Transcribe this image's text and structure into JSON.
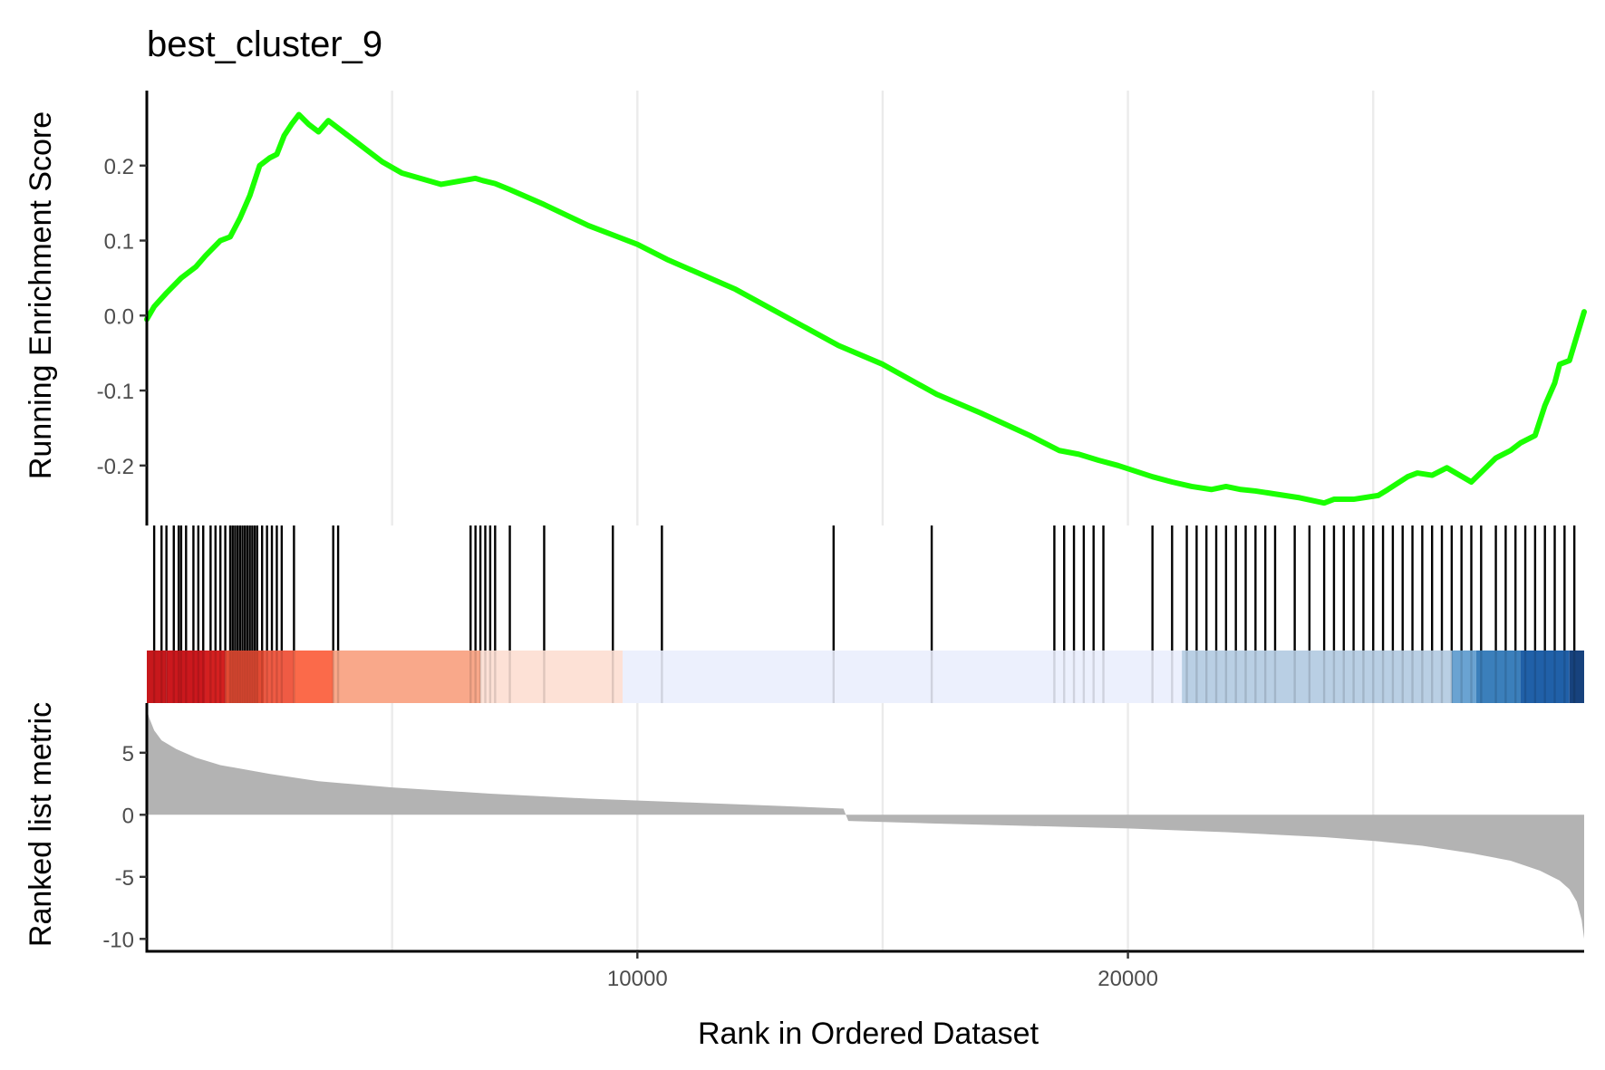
{
  "chart_data": {
    "type": "line",
    "title": "best_cluster_9",
    "xlabel": "Rank in Ordered Dataset",
    "xlim": [
      0,
      29300
    ],
    "x_ticks": [
      {
        "value": 10000,
        "label": "10000"
      },
      {
        "value": 20000,
        "label": "20000"
      }
    ],
    "x_grid": [
      5000,
      10000,
      15000,
      20000,
      25000
    ],
    "grid": true,
    "legend": "none",
    "colors": {
      "enrichment_line": "#1aff00",
      "hit_marks": "#000000",
      "metric_area": "#b3b3b3",
      "grid": "#ebebeb",
      "axis": "#000000"
    },
    "panels": [
      {
        "name": "running_enrichment",
        "ylabel": "Running Enrichment Score",
        "ylim": [
          -0.28,
          0.3
        ],
        "y_ticks": [
          {
            "value": 0.2,
            "label": "0.2"
          },
          {
            "value": 0.1,
            "label": "0.1"
          },
          {
            "value": 0.0,
            "label": "0.0"
          },
          {
            "value": -0.1,
            "label": "-0.1"
          },
          {
            "value": -0.2,
            "label": "-0.2"
          }
        ],
        "series": [
          {
            "x": [
              0,
              150,
              400,
              700,
              1000,
              1200,
              1500,
              1700,
              1900,
              2100,
              2300,
              2500,
              2650,
              2800,
              2950,
              3100,
              3300,
              3500,
              3700,
              3900,
              4100,
              4300,
              4500,
              4800,
              5200,
              6000,
              6700,
              6850,
              7100,
              7400,
              8100,
              9000,
              9600,
              10000,
              10600,
              12000,
              14100,
              15000,
              16100,
              17000,
              18000,
              18600,
              19000,
              19400,
              19800,
              20500,
              20900,
              21300,
              21700,
              22000,
              22300,
              22600,
              23000,
              23500,
              24000,
              24200,
              24600,
              25100,
              25300,
              25700,
              25900,
              26200,
              26500,
              27000,
              27500,
              27800,
              28000,
              28300,
              28500,
              28700,
              28800,
              29000,
              29300
            ],
            "y": [
              -0.005,
              0.012,
              0.03,
              0.05,
              0.065,
              0.08,
              0.1,
              0.105,
              0.13,
              0.16,
              0.2,
              0.21,
              0.215,
              0.24,
              0.255,
              0.268,
              0.255,
              0.245,
              0.26,
              0.25,
              0.24,
              0.23,
              0.22,
              0.205,
              0.19,
              0.175,
              0.183,
              0.18,
              0.176,
              0.168,
              0.148,
              0.12,
              0.105,
              0.095,
              0.075,
              0.035,
              -0.04,
              -0.065,
              -0.105,
              -0.13,
              -0.16,
              -0.18,
              -0.185,
              -0.193,
              -0.2,
              -0.215,
              -0.222,
              -0.228,
              -0.232,
              -0.228,
              -0.232,
              -0.234,
              -0.238,
              -0.243,
              -0.25,
              -0.245,
              -0.245,
              -0.24,
              -0.232,
              -0.215,
              -0.21,
              -0.213,
              -0.203,
              -0.222,
              -0.19,
              -0.18,
              -0.17,
              -0.16,
              -0.12,
              -0.09,
              -0.065,
              -0.06,
              0.005
            ]
          }
        ]
      },
      {
        "name": "gene_set_hits",
        "hits": [
          150,
          300,
          400,
          550,
          650,
          700,
          800,
          950,
          1050,
          1150,
          1300,
          1400,
          1500,
          1600,
          1700,
          1750,
          1800,
          1850,
          1900,
          1950,
          2000,
          2050,
          2100,
          2150,
          2200,
          2250,
          2350,
          2450,
          2550,
          2650,
          2750,
          3000,
          3800,
          3900,
          6600,
          6700,
          6800,
          6900,
          7000,
          7100,
          7400,
          8100,
          9500,
          10500,
          14000,
          16000,
          18500,
          18700,
          18900,
          19100,
          19300,
          19500,
          20500,
          20900,
          21200,
          21400,
          21600,
          21800,
          22000,
          22200,
          22400,
          22600,
          22800,
          23000,
          23400,
          23700,
          24000,
          24200,
          24400,
          24600,
          24800,
          25000,
          25200,
          25400,
          25600,
          25800,
          26000,
          26200,
          26400,
          26600,
          26800,
          27000,
          27200,
          27500,
          27700,
          27900,
          28100,
          28300,
          28500,
          28700,
          28900,
          29100
        ]
      },
      {
        "name": "ranked_metric_heatmap",
        "type": "heatmap",
        "segments": [
          {
            "x0": 0,
            "x1": 400,
            "color": "#c7181c"
          },
          {
            "x0": 400,
            "x1": 1200,
            "color": "#cb181d"
          },
          {
            "x0": 1200,
            "x1": 1600,
            "color": "#d42020"
          },
          {
            "x0": 1600,
            "x1": 2400,
            "color": "#e24a33"
          },
          {
            "x0": 2400,
            "x1": 3000,
            "color": "#ef5b44"
          },
          {
            "x0": 3000,
            "x1": 3800,
            "color": "#fb6a4a"
          },
          {
            "x0": 3800,
            "x1": 6800,
            "color": "#f9a88a"
          },
          {
            "x0": 6800,
            "x1": 9700,
            "color": "#fde1d6"
          },
          {
            "x0": 9700,
            "x1": 21100,
            "color": "#ecf0fd"
          },
          {
            "x0": 21100,
            "x1": 26600,
            "color": "#b9cfe4"
          },
          {
            "x0": 26600,
            "x1": 27100,
            "color": "#6aa3d2"
          },
          {
            "x0": 27100,
            "x1": 28000,
            "color": "#3b7fbb"
          },
          {
            "x0": 28000,
            "x1": 29000,
            "color": "#2060a8"
          },
          {
            "x0": 29000,
            "x1": 29300,
            "color": "#17427d"
          }
        ]
      },
      {
        "name": "ranked_list_metric",
        "type": "area",
        "ylabel": "Ranked list metric",
        "ylim": [
          -11,
          9
        ],
        "y_ticks": [
          {
            "value": 5,
            "label": "5"
          },
          {
            "value": 0,
            "label": "0"
          },
          {
            "value": -5,
            "label": "-5"
          },
          {
            "value": -10,
            "label": "-10"
          }
        ],
        "series": [
          {
            "x": [
              0,
              50,
              150,
              300,
              600,
              1000,
              1500,
              2500,
              3500,
              5000,
              7000,
              9000,
              11000,
              13000,
              14200,
              14300,
              16000,
              18000,
              20000,
              22000,
              24000,
              25000,
              26000,
              27000,
              27800,
              28400,
              28800,
              29000,
              29150,
              29250,
              29300
            ],
            "y": [
              8.5,
              7.8,
              6.8,
              6.0,
              5.3,
              4.6,
              4.0,
              3.3,
              2.7,
              2.2,
              1.7,
              1.3,
              1.0,
              0.7,
              0.5,
              -0.5,
              -0.7,
              -0.9,
              -1.1,
              -1.4,
              -1.8,
              -2.1,
              -2.5,
              -3.1,
              -3.7,
              -4.5,
              -5.3,
              -6.0,
              -7.0,
              -8.5,
              -10.0
            ]
          }
        ]
      }
    ]
  }
}
